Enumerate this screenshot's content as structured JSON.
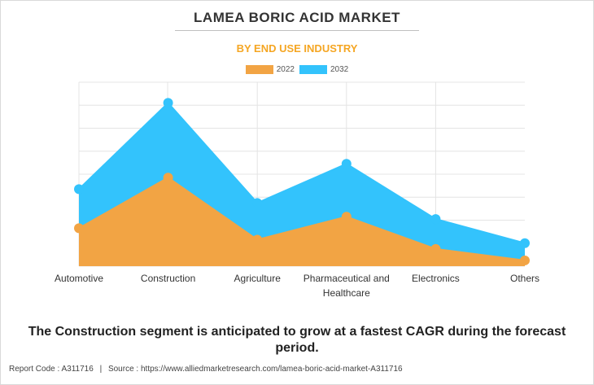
{
  "header": {
    "title": "LAMEA BORIC ACID MARKET",
    "subtitle": "BY END USE INDUSTRY"
  },
  "caption": "The Construction segment is anticipated to grow at a fastest CAGR during the forecast period.",
  "footer": {
    "report_code_label": "Report Code : A311716",
    "separator": "|",
    "source_label": "Source : https://www.alliedmarketresearch.com/lamea-boric-acid-market-A311716"
  },
  "colors": {
    "series_2022": "#f2a444",
    "series_2032": "#33c3fc",
    "grid": "#e4e4e4",
    "subtitle": "#f5a623"
  },
  "chart_data": {
    "type": "area",
    "categories": [
      "Automotive",
      "Construction",
      "Agriculture",
      "Pharmaceutical and Healthcare",
      "Electronics",
      "Others"
    ],
    "category_lines": [
      [
        "Automotive"
      ],
      [
        "Construction"
      ],
      [
        "Agriculture"
      ],
      [
        "Pharmaceutical and",
        "Healthcare"
      ],
      [
        "Electronics"
      ],
      [
        "Others"
      ]
    ],
    "series": [
      {
        "name": "2022",
        "values": [
          16.5,
          38.5,
          11.5,
          21.5,
          7.5,
          2.5
        ]
      },
      {
        "name": "2032",
        "values": [
          33.5,
          71.0,
          27.5,
          44.5,
          20.5,
          10.0
        ]
      }
    ],
    "ylim": [
      0,
      80
    ],
    "y_gridlines": 8,
    "title": "LAMEA BORIC ACID MARKET",
    "subtitle": "BY END USE INDUSTRY",
    "xlabel": "",
    "ylabel": "",
    "grid": true,
    "legend_position": "top-center"
  }
}
